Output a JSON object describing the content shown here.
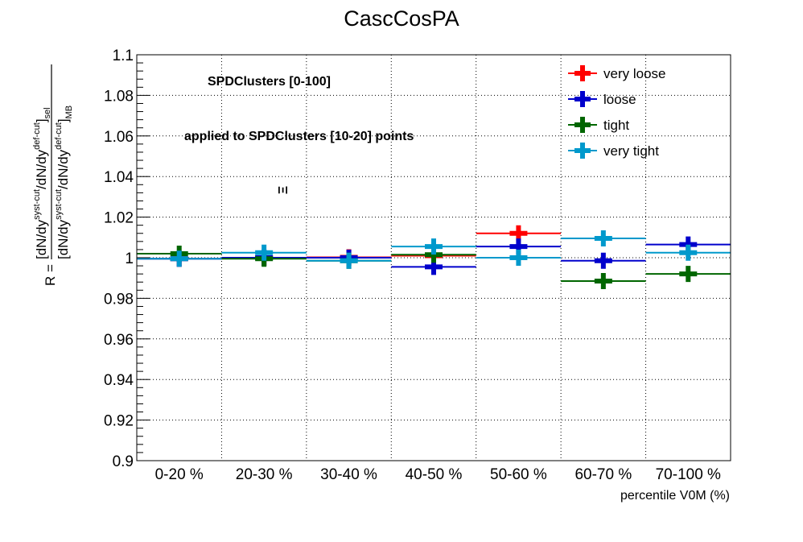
{
  "chart_data": {
    "type": "scatter",
    "title": "CascCosPA",
    "xlabel": "percentile V0M (%)",
    "ylabel": {
      "prefix": "R = ",
      "numerator": [
        "[dN/dy",
        "syst-cut",
        "/dN/dy",
        "def-cut",
        "]",
        "sel"
      ],
      "denominator": [
        "[dN/dy",
        "syst-cut",
        "/dN/dy",
        "def-cut",
        "]",
        "MB"
      ]
    },
    "categories": [
      "0-20 %",
      "20-30 %",
      "30-40 %",
      "40-50 %",
      "50-60 %",
      "60-70 %",
      "70-100 %"
    ],
    "ylim": [
      0.9,
      1.1
    ],
    "yticks": [
      "0.9",
      "0.92",
      "0.94",
      "0.96",
      "0.98",
      "1",
      "1.02",
      "1.04",
      "1.06",
      "1.08",
      "1.1"
    ],
    "grid": true,
    "legend_position": "top-right",
    "annotations": [
      "SPDClusters [0-100]",
      "applied to SPDClusters [10-20] points",
      "Ξ"
    ],
    "series": [
      {
        "name": "very loose",
        "color": "#ff0000",
        "values": [
          0.9995,
          1.0,
          1.0002,
          1.001,
          1.012,
          null,
          null
        ],
        "errors": [
          0.0015,
          0.0015,
          0.0015,
          0.0015,
          0.003,
          0,
          0
        ]
      },
      {
        "name": "loose",
        "color": "#0000cc",
        "values": [
          0.9995,
          1.0,
          1.0,
          0.9955,
          1.0055,
          0.9985,
          1.0065
        ],
        "errors": [
          0.0015,
          0.0015,
          0.002,
          0.0025,
          0.0025,
          0.0025,
          0.0025
        ]
      },
      {
        "name": "tight",
        "color": "#006600",
        "values": [
          1.002,
          0.9995,
          0.9985,
          1.0015,
          null,
          0.9885,
          0.992
        ],
        "errors": [
          0.003,
          0.0025,
          0.0025,
          0.0025,
          0,
          0.0025,
          0.003
        ]
      },
      {
        "name": "very tight",
        "color": "#0099cc",
        "values": [
          0.9995,
          1.0025,
          0.9985,
          1.0055,
          1.0,
          1.0095,
          1.0025
        ],
        "errors": [
          0.0025,
          0.0025,
          0.0025,
          0.0025,
          0.0025,
          0.0025,
          0.0025
        ]
      }
    ]
  }
}
